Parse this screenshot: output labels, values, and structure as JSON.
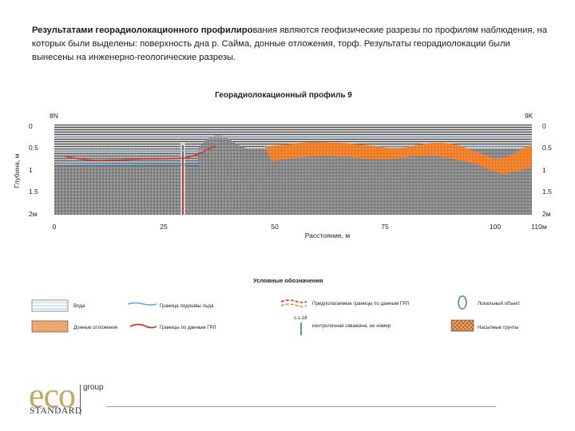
{
  "intro": {
    "bold": "Результатами георадиолокационного профилиро",
    "rest": "вания являются геофизические разрезы по профилям наблюдения, на которых были выделены: поверхность дна р. Сайма, донные отложения, торф. Результаты георадиолокации были вынесены на инженерно-геологические разрезы."
  },
  "profile": {
    "title": "Георадиолокационный профиль 9",
    "left_station": "8N",
    "right_station": "9K",
    "y_axis_label": "Глубина, м",
    "x_axis_label": "Расстояние, м",
    "depth_ticks": [
      "0",
      "0.5",
      "1",
      "1.5",
      "2м"
    ],
    "distance_ticks": [
      "0",
      "25",
      "50",
      "75",
      "100",
      "110м"
    ]
  },
  "legend": {
    "title": "Условные обозначения",
    "items": [
      {
        "label": "Вода",
        "symbol": "water-swatch-icon"
      },
      {
        "label": "Граница подошвы льда",
        "symbol": "ice-boundary-line-icon"
      },
      {
        "label": "Предполагаемые границы по данным ГРЛ",
        "symbol": "dashed-boundary-line-icon"
      },
      {
        "label": "Локальный объект",
        "symbol": "local-object-icon"
      },
      {
        "label": "Донные отложения",
        "symbol": "sediment-swatch-icon"
      },
      {
        "label": "Границы по данным ГРЛ",
        "symbol": "gpr-boundary-line-icon"
      },
      {
        "label": "контролочная скважина, ее номер",
        "symbol": "borehole-icon",
        "tag": "c.s.18"
      },
      {
        "label": "Насыпные грунты",
        "symbol": "fill-soil-swatch-icon"
      }
    ]
  },
  "logo": {
    "eco": "eco",
    "standard": "STANDARD",
    "group": "group"
  },
  "colors": {
    "sediment": "#f0812a",
    "water": "#9cc8e8",
    "gpr_boundary": "#d6332a",
    "ice": "#5aa9df",
    "radar_gray": "#8a8a8a",
    "logo_gold": "#c4a86a"
  }
}
